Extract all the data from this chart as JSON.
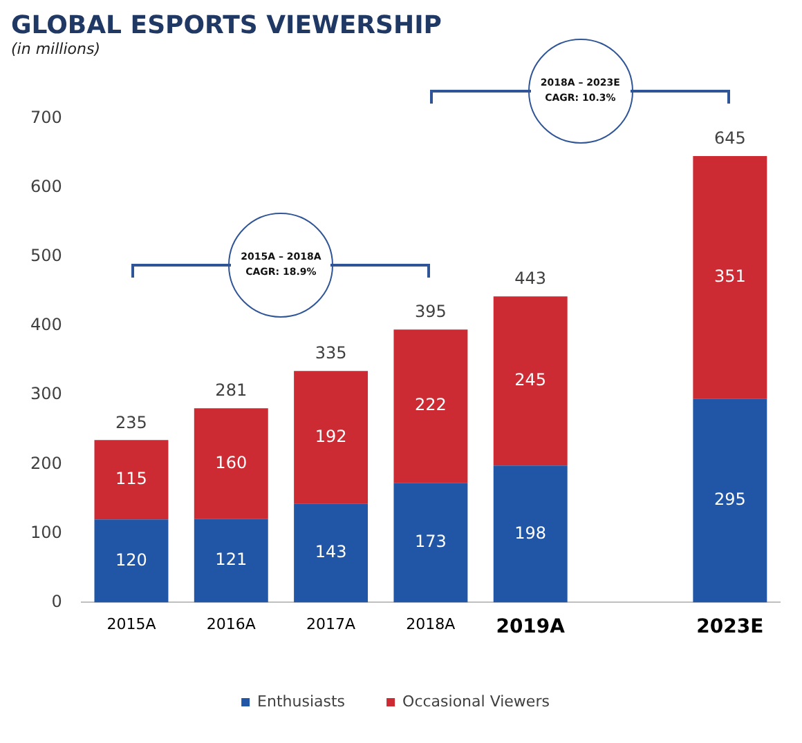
{
  "chart_data": {
    "type": "bar",
    "title": "GLOBAL ESPORTS VIEWERSHIP",
    "subtitle": "(in millions)",
    "categories": [
      "2015A",
      "2016A",
      "2017A",
      "2018A",
      "2019A",
      null,
      "2023E"
    ],
    "series": [
      {
        "name": "Enthusiasts",
        "color": "#2155a6",
        "values": [
          120,
          121,
          143,
          173,
          198,
          null,
          295
        ]
      },
      {
        "name": "Occasional Viewers",
        "color": "#cc2b33",
        "values": [
          115,
          160,
          192,
          222,
          245,
          null,
          351
        ]
      }
    ],
    "stacked": true,
    "data_labels": true,
    "totals": [
      "235",
      "281",
      "335",
      "395",
      "443",
      null,
      "645"
    ],
    "ylim": [
      0,
      700
    ],
    "yticks": [
      0,
      100,
      200,
      300,
      400,
      500,
      600,
      700
    ],
    "grid": false,
    "legend": "bottom",
    "annotations": [
      "2015A – 2018A CAGR: 18.9%",
      "2018A – 2023E CAGR: 10.3%"
    ]
  }
}
